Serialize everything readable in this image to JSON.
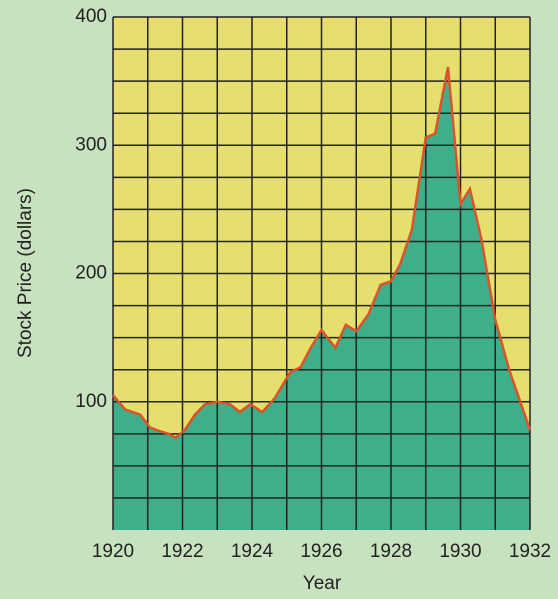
{
  "chart_data": {
    "type": "area",
    "xlabel": "Year",
    "ylabel": "Stock Price (dollars)",
    "x": [
      1920,
      1920.35,
      1920.78,
      1921.06,
      1921.35,
      1921.6,
      1921.8,
      1922.07,
      1922.36,
      1922.65,
      1923.0,
      1923.37,
      1923.65,
      1923.95,
      1924.3,
      1924.66,
      1925.1,
      1925.4,
      1925.67,
      1926.0,
      1926.4,
      1926.7,
      1927.0,
      1927.35,
      1927.7,
      1928.0,
      1928.26,
      1928.6,
      1929.0,
      1929.27,
      1929.64,
      1930.0,
      1930.27,
      1930.6,
      1931.0,
      1931.4,
      1932.0
    ],
    "values": [
      105,
      94,
      90,
      80,
      77,
      75,
      72,
      78,
      90,
      98,
      100,
      98,
      92,
      98,
      92,
      103,
      123,
      127,
      141,
      156,
      142,
      160,
      155,
      168,
      191,
      194,
      207,
      234,
      306,
      309,
      361,
      254,
      266,
      227,
      164,
      125,
      78
    ],
    "color": "#3fae8a",
    "line_color": "#d9542a",
    "background_color": "#e6df6e",
    "xlim": [
      1920,
      1932
    ],
    "xticks": [
      1920,
      1922,
      1924,
      1926,
      1928,
      1930,
      1932
    ],
    "xticks_minor": [
      1921,
      1923,
      1925,
      1927,
      1929,
      1931
    ],
    "ylim": [
      0,
      400
    ],
    "yticks": [
      100,
      200,
      300,
      400
    ],
    "yticks_minor": [
      25,
      50,
      75,
      125,
      150,
      175,
      225,
      250,
      275,
      325,
      350,
      375
    ],
    "grid": true
  }
}
